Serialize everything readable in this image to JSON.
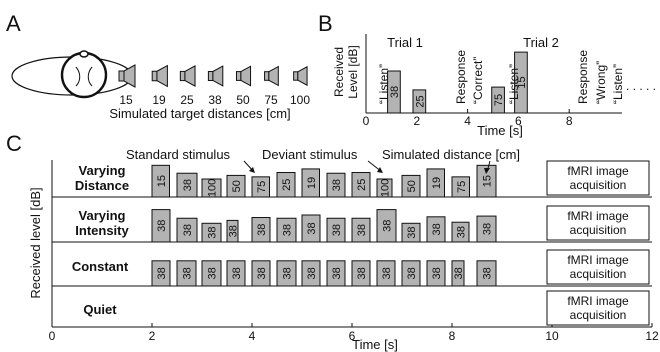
{
  "panel_a": {
    "label": "A",
    "distances": [
      "15",
      "19",
      "25",
      "38",
      "50",
      "75",
      "100"
    ],
    "caption": "Simulated target distances [cm]"
  },
  "panel_b": {
    "label": "B",
    "y_label_line1": "Received",
    "y_label_line2": "Level [dB]",
    "trial1": "Trial 1",
    "trial2": "Trial 2",
    "listen": "“Listen”",
    "response": "Response",
    "correct": "“Correct”",
    "wrong": "“Wrong”",
    "dots": ". . . . .",
    "x_ticks": [
      "0",
      "2",
      "4",
      "6",
      "8"
    ],
    "x_label": "Time [s]",
    "bars": [
      {
        "t": 0.85,
        "w": 0.5,
        "h": 0.6,
        "label": "38"
      },
      {
        "t": 1.85,
        "w": 0.5,
        "h": 0.33,
        "label": "25"
      },
      {
        "t": 4.95,
        "w": 0.5,
        "h": 0.37,
        "label": "75"
      },
      {
        "t": 5.85,
        "w": 0.5,
        "h": 0.87,
        "label": "15"
      }
    ]
  },
  "panel_c": {
    "label": "C",
    "y_label": "Received level [dB]",
    "x_label": "Time [s]",
    "x_ticks": [
      "0",
      "2",
      "4",
      "6",
      "8",
      "10",
      "12"
    ],
    "ann_standard": "Standard stimulus",
    "ann_deviant": "Deviant stimulus",
    "ann_distance": "Simulated distance [cm]",
    "fmri_line1": "fMRI image",
    "fmri_line2": "acquisition",
    "rows": [
      {
        "name_line1": "Varying",
        "name_line2": "Distance",
        "blocks": [
          {
            "w": 0.35,
            "h": 0.88,
            "label": "15"
          },
          {
            "w": 0.4,
            "h": 0.66,
            "label": "38"
          },
          {
            "w": 0.38,
            "h": 0.5,
            "label": "100"
          },
          {
            "w": 0.36,
            "h": 0.6,
            "label": "50"
          },
          {
            "w": 0.35,
            "h": 0.56,
            "label": "75"
          },
          {
            "w": 0.36,
            "h": 0.68,
            "label": "25"
          },
          {
            "w": 0.35,
            "h": 0.78,
            "label": "19"
          },
          {
            "w": 0.36,
            "h": 0.66,
            "label": "38"
          },
          {
            "w": 0.36,
            "h": 0.68,
            "label": "25"
          },
          {
            "w": 0.3,
            "h": 0.5,
            "label": "100"
          },
          {
            "w": 0.36,
            "h": 0.6,
            "label": "50"
          },
          {
            "w": 0.35,
            "h": 0.78,
            "label": "19"
          },
          {
            "w": 0.35,
            "h": 0.56,
            "label": "75"
          },
          {
            "w": 0.38,
            "h": 0.88,
            "label": "15"
          }
        ]
      },
      {
        "name_line1": "Varying",
        "name_line2": "Intensity",
        "blocks": [
          {
            "w": 0.36,
            "h": 0.9,
            "label": "38"
          },
          {
            "w": 0.4,
            "h": 0.66,
            "label": "38"
          },
          {
            "w": 0.38,
            "h": 0.52,
            "label": "38"
          },
          {
            "w": 0.22,
            "h": 0.6,
            "label": "38"
          },
          {
            "w": 0.36,
            "h": 0.68,
            "label": "38"
          },
          {
            "w": 0.38,
            "h": 0.66,
            "label": "38"
          },
          {
            "w": 0.36,
            "h": 0.75,
            "label": "38"
          },
          {
            "w": 0.36,
            "h": 0.66,
            "label": "38"
          },
          {
            "w": 0.36,
            "h": 0.66,
            "label": "38"
          },
          {
            "w": 0.38,
            "h": 0.9,
            "label": "38"
          },
          {
            "w": 0.36,
            "h": 0.52,
            "label": "38"
          },
          {
            "w": 0.36,
            "h": 0.7,
            "label": "38"
          },
          {
            "w": 0.34,
            "h": 0.55,
            "label": "38"
          },
          {
            "w": 0.38,
            "h": 0.72,
            "label": "38"
          }
        ]
      },
      {
        "name_line1": "Constant",
        "name_line2": "",
        "blocks": [
          {
            "w": 0.36,
            "h": 0.7,
            "label": "38"
          },
          {
            "w": 0.38,
            "h": 0.7,
            "label": "38"
          },
          {
            "w": 0.38,
            "h": 0.7,
            "label": "38"
          },
          {
            "w": 0.36,
            "h": 0.7,
            "label": "38"
          },
          {
            "w": 0.36,
            "h": 0.7,
            "label": "38"
          },
          {
            "w": 0.38,
            "h": 0.7,
            "label": "38"
          },
          {
            "w": 0.36,
            "h": 0.7,
            "label": "38"
          },
          {
            "w": 0.36,
            "h": 0.7,
            "label": "38"
          },
          {
            "w": 0.36,
            "h": 0.7,
            "label": "38"
          },
          {
            "w": 0.36,
            "h": 0.7,
            "label": "38"
          },
          {
            "w": 0.36,
            "h": 0.7,
            "label": "38"
          },
          {
            "w": 0.36,
            "h": 0.7,
            "label": "38"
          },
          {
            "w": 0.24,
            "h": 0.7,
            "label": "38"
          },
          {
            "w": 0.38,
            "h": 0.7,
            "label": "38"
          }
        ]
      },
      {
        "name_line1": "Quiet",
        "name_line2": "",
        "blocks": []
      }
    ]
  }
}
